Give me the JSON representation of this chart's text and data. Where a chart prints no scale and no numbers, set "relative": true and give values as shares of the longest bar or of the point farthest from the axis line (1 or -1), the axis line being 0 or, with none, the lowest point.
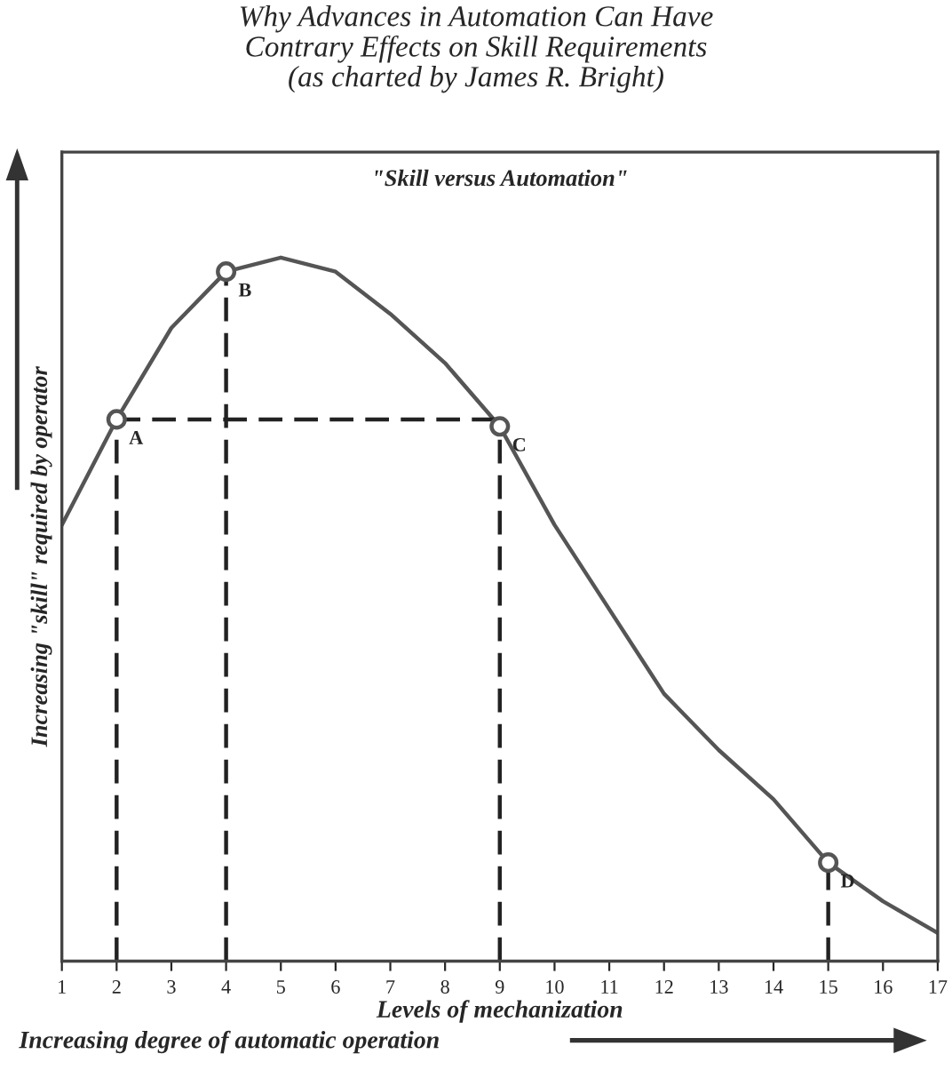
{
  "chart_data": {
    "type": "line",
    "title": "Why Advances in Automation Can Have\nContrary Effects on Skill Requirements\n(as charted by James R. Bright)",
    "subtitle": "\"Skill versus Automation\"",
    "xlabel": "Levels of mechanization",
    "ylabel": "Increasing \"skill\" required by operator",
    "annotations": [
      "Increasing degree of automatic operation",
      {
        "text": "A",
        "x": 2,
        "y": 0.77
      },
      {
        "text": "B",
        "x": 4,
        "y": 0.98
      },
      {
        "text": "C",
        "x": 9,
        "y": 0.76
      },
      {
        "text": "D",
        "x": 15,
        "y": 0.14
      }
    ],
    "relative": true,
    "xlim": [
      1,
      17
    ],
    "xticks": [
      1,
      2,
      3,
      4,
      5,
      6,
      7,
      8,
      9,
      10,
      11,
      12,
      13,
      14,
      15,
      16,
      17
    ],
    "tick_labels": "x",
    "grid": false,
    "legend": false,
    "series": [
      {
        "color": "#555555",
        "x": [
          1,
          2,
          3,
          4,
          5,
          6,
          7,
          8,
          9,
          10,
          11,
          12,
          13,
          14,
          15,
          16,
          17
        ],
        "values": [
          0.62,
          0.77,
          0.9,
          0.98,
          1.0,
          0.98,
          0.92,
          0.85,
          0.76,
          0.62,
          0.5,
          0.38,
          0.3,
          0.23,
          0.14,
          0.085,
          0.04
        ]
      },
      {
        "type": "line",
        "line_style": "dashed",
        "color": "#222222",
        "x": [
          2,
          9
        ],
        "values": [
          0.77,
          0.77
        ]
      },
      {
        "type": "line",
        "line_style": "dashed",
        "color": "#222222",
        "x": [
          2,
          2
        ],
        "values": [
          0,
          0.77
        ]
      },
      {
        "type": "line",
        "line_style": "dashed",
        "color": "#222222",
        "x": [
          4,
          4
        ],
        "values": [
          0,
          0.98
        ]
      },
      {
        "type": "line",
        "line_style": "dashed",
        "color": "#222222",
        "x": [
          9,
          9
        ],
        "values": [
          0,
          0.76
        ]
      },
      {
        "type": "line",
        "line_style": "dashed",
        "color": "#222222",
        "x": [
          15,
          15
        ],
        "values": [
          0,
          0.14
        ]
      },
      {
        "type": "scatter",
        "marker": "circle",
        "color": "#555555",
        "x": [
          2,
          4,
          9,
          15
        ],
        "values": [
          0.77,
          0.98,
          0.76,
          0.14
        ]
      }
    ]
  }
}
